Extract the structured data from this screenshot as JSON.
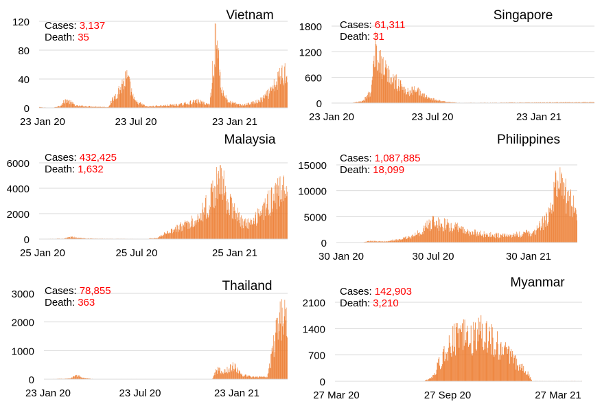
{
  "colors": {
    "bar": "#ed7d31",
    "red": "#ff0000",
    "grid": "#d9d9d9",
    "axis": "#000000",
    "text": "#000000"
  },
  "chart_data": [
    {
      "type": "bar",
      "title": "Vietnam",
      "cases_label": "Cases:",
      "cases_value": "3,137",
      "death_label": "Death:",
      "death_value": "35",
      "yticks": [
        "0",
        "40",
        "80",
        "120"
      ],
      "ylim": [
        0,
        120
      ],
      "xticks": [
        "23 Jan 20",
        "23 Jul 20",
        "23 Jan 21"
      ],
      "x_range": [
        "2020-01-23",
        "2021-06-27"
      ],
      "grid": true,
      "daily_cases_profile": [
        [
          "2020-01-23",
          1
        ],
        [
          "2020-02-20",
          0
        ],
        [
          "2020-03-06",
          3
        ],
        [
          "2020-03-20",
          12
        ],
        [
          "2020-04-10",
          3
        ],
        [
          "2020-05-15",
          2
        ],
        [
          "2020-06-15",
          1
        ],
        [
          "2020-07-25",
          45
        ],
        [
          "2020-08-10",
          10
        ],
        [
          "2020-09-05",
          2
        ],
        [
          "2020-11-15",
          5
        ],
        [
          "2020-12-20",
          10
        ],
        [
          "2021-01-15",
          5
        ],
        [
          "2021-01-28",
          108
        ],
        [
          "2021-02-10",
          25
        ],
        [
          "2021-02-25",
          8
        ],
        [
          "2021-03-25",
          4
        ],
        [
          "2021-04-30",
          10
        ],
        [
          "2021-05-25",
          25
        ],
        [
          "2021-06-15",
          50
        ],
        [
          "2021-06-27",
          55
        ]
      ]
    },
    {
      "type": "bar",
      "title": "Singapore",
      "cases_label": "Cases:",
      "cases_value": "61,311",
      "death_label": "Death:",
      "death_value": "31",
      "yticks": [
        "0",
        "600",
        "1200",
        "1800"
      ],
      "ylim": [
        0,
        1800
      ],
      "xticks": [
        "23 Jan 20",
        "23 Jul 20",
        "23 Jan 21"
      ],
      "x_range": [
        "2020-01-23",
        "2021-06-27"
      ],
      "grid": true,
      "daily_cases_profile": [
        [
          "2020-01-23",
          1
        ],
        [
          "2020-03-01",
          5
        ],
        [
          "2020-03-25",
          50
        ],
        [
          "2020-04-10",
          300
        ],
        [
          "2020-04-20",
          1400
        ],
        [
          "2020-05-01",
          900
        ],
        [
          "2020-05-20",
          650
        ],
        [
          "2020-06-10",
          400
        ],
        [
          "2020-06-25",
          250
        ],
        [
          "2020-07-10",
          400
        ],
        [
          "2020-07-20",
          200
        ],
        [
          "2020-08-10",
          100
        ],
        [
          "2020-09-05",
          30
        ],
        [
          "2020-10-01",
          8
        ],
        [
          "2021-06-27",
          20
        ]
      ]
    },
    {
      "type": "bar",
      "title": "Malaysia",
      "cases_label": "Cases:",
      "cases_value": "432,425",
      "death_label": "Death:",
      "death_value": "1,632",
      "yticks": [
        "0",
        "2000",
        "4000",
        "6000"
      ],
      "ylim": [
        0,
        6000
      ],
      "xticks": [
        "25 Jan 20",
        "25 Jul 20",
        "25 Jan 21"
      ],
      "x_range": [
        "2020-01-25",
        "2021-06-20"
      ],
      "grid": true,
      "daily_cases_profile": [
        [
          "2020-01-25",
          5
        ],
        [
          "2020-03-15",
          50
        ],
        [
          "2020-04-01",
          180
        ],
        [
          "2020-04-20",
          80
        ],
        [
          "2020-05-15",
          40
        ],
        [
          "2020-09-01",
          20
        ],
        [
          "2020-09-25",
          100
        ],
        [
          "2020-10-10",
          500
        ],
        [
          "2020-11-10",
          1000
        ],
        [
          "2020-12-10",
          1600
        ],
        [
          "2021-01-10",
          3000
        ],
        [
          "2021-01-30",
          5300
        ],
        [
          "2021-02-20",
          3000
        ],
        [
          "2021-03-20",
          1300
        ],
        [
          "2021-04-10",
          1300
        ],
        [
          "2021-05-01",
          2500
        ],
        [
          "2021-05-20",
          3500
        ],
        [
          "2021-06-20",
          4300
        ]
      ]
    },
    {
      "type": "bar",
      "title": "Philippines",
      "cases_label": "Cases:",
      "cases_value": "1,087,885",
      "death_label": "Death:",
      "death_value": "18,099",
      "yticks": [
        "0",
        "5000",
        "10000",
        "15000"
      ],
      "ylim": [
        0,
        15000
      ],
      "xticks": [
        "30 Jan 20",
        "30 Jul 20",
        "30 Jan 21"
      ],
      "x_range": [
        "2020-01-30",
        "2021-05-12"
      ],
      "grid": true,
      "daily_cases_profile": [
        [
          "2020-01-30",
          0
        ],
        [
          "2020-03-20",
          0
        ],
        [
          "2020-04-01",
          300
        ],
        [
          "2020-05-01",
          250
        ],
        [
          "2020-06-01",
          600
        ],
        [
          "2020-07-01",
          1500
        ],
        [
          "2020-08-05",
          4200
        ],
        [
          "2020-08-25",
          3700
        ],
        [
          "2020-09-20",
          3000
        ],
        [
          "2020-10-20",
          2000
        ],
        [
          "2020-11-20",
          1600
        ],
        [
          "2020-12-20",
          1400
        ],
        [
          "2021-01-20",
          1700
        ],
        [
          "2021-02-20",
          2200
        ],
        [
          "2021-03-15",
          5000
        ],
        [
          "2021-03-25",
          9000
        ],
        [
          "2021-04-05",
          13000
        ],
        [
          "2021-04-20",
          10000
        ],
        [
          "2021-05-12",
          6500
        ]
      ]
    },
    {
      "type": "bar",
      "title": "Thailand",
      "cases_label": "Cases:",
      "cases_value": "78,855",
      "death_label": "Death:",
      "death_value": "363",
      "yticks": [
        "0",
        "1000",
        "2000",
        "3000"
      ],
      "ylim": [
        0,
        3000
      ],
      "xticks": [
        "23 Jan 20",
        "23 Jul 20",
        "23 Jan 21"
      ],
      "x_range": [
        "2020-01-23",
        "2021-05-10"
      ],
      "grid": true,
      "daily_cases_profile": [
        [
          "2020-01-23",
          3
        ],
        [
          "2020-03-15",
          30
        ],
        [
          "2020-03-25",
          150
        ],
        [
          "2020-04-10",
          40
        ],
        [
          "2020-05-01",
          10
        ],
        [
          "2020-12-15",
          10
        ],
        [
          "2020-12-22",
          350
        ],
        [
          "2021-01-10",
          300
        ],
        [
          "2021-01-25",
          500
        ],
        [
          "2021-02-10",
          150
        ],
        [
          "2021-03-10",
          80
        ],
        [
          "2021-04-01",
          100
        ],
        [
          "2021-04-15",
          1400
        ],
        [
          "2021-04-25",
          2500
        ],
        [
          "2021-05-10",
          2100
        ]
      ]
    },
    {
      "type": "bar",
      "title": "Myanmar",
      "cases_label": "Cases:",
      "cases_value": "142,903",
      "death_label": "Death:",
      "death_value": "3,210",
      "yticks": [
        "0",
        "700",
        "1400",
        "2100"
      ],
      "ylim": [
        0,
        2100
      ],
      "xticks": [
        "27 Mar 20",
        "27 Sep 20",
        "27 Mar 21"
      ],
      "x_range": [
        "2020-03-27",
        "2021-04-25"
      ],
      "grid": true,
      "daily_cases_profile": [
        [
          "2020-03-27",
          2
        ],
        [
          "2020-08-15",
          5
        ],
        [
          "2020-08-28",
          100
        ],
        [
          "2020-09-15",
          700
        ],
        [
          "2020-10-01",
          1200
        ],
        [
          "2020-10-20",
          1300
        ],
        [
          "2020-11-05",
          1200
        ],
        [
          "2020-11-15",
          1500
        ],
        [
          "2020-12-01",
          1200
        ],
        [
          "2020-12-20",
          900
        ],
        [
          "2021-01-10",
          550
        ],
        [
          "2021-01-30",
          200
        ],
        [
          "2021-02-05",
          10
        ],
        [
          "2021-04-25",
          10
        ]
      ]
    }
  ]
}
